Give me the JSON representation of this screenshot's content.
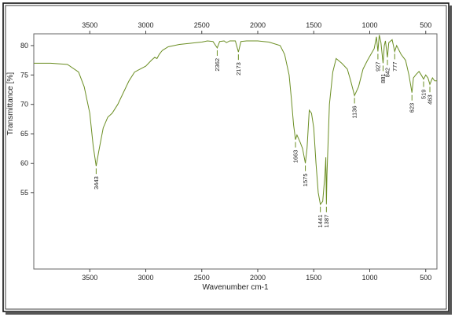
{
  "chart_data": {
    "type": "line",
    "title": "",
    "xlabel": "Wavenumber cm-1",
    "ylabel": "Transmittance [%]",
    "x_reversed": true,
    "xlim": [
      4000,
      400
    ],
    "ylim": [
      42,
      82
    ],
    "x_ticks": [
      3500,
      3000,
      2500,
      2000,
      1500,
      1000,
      500
    ],
    "y_ticks": [
      55,
      60,
      65,
      70,
      75,
      80
    ],
    "grid": false,
    "legend": "none",
    "series_color": "#6b8e23",
    "series": [
      {
        "x": [
          4000,
          3850,
          3700,
          3600,
          3550,
          3500,
          3470,
          3443,
          3420,
          3380,
          3340,
          3300,
          3250,
          3200,
          3150,
          3100,
          3050,
          3000,
          2950,
          2920,
          2900,
          2880,
          2860,
          2850,
          2800,
          2700,
          2600,
          2500,
          2450,
          2400,
          2362,
          2340,
          2300,
          2280,
          2250,
          2200,
          2173,
          2150,
          2100,
          2000,
          1900,
          1800,
          1760,
          1720,
          1700,
          1680,
          1663,
          1650,
          1620,
          1600,
          1575,
          1560,
          1540,
          1520,
          1500,
          1480,
          1460,
          1441,
          1420,
          1400,
          1392,
          1387,
          1382,
          1360,
          1330,
          1300,
          1250,
          1200,
          1170,
          1136,
          1100,
          1060,
          1020,
          990,
          960,
          940,
          927,
          915,
          900,
          881,
          870,
          860,
          842,
          830,
          800,
          777,
          760,
          720,
          680,
          650,
          623,
          610,
          590,
          560,
          540,
          519,
          500,
          480,
          463,
          440,
          420,
          400
        ],
        "y": [
          77.0,
          77.0,
          76.8,
          75.5,
          73.0,
          68.5,
          63.0,
          59.5,
          62.0,
          66.0,
          67.8,
          68.5,
          70.0,
          72.0,
          74.0,
          75.5,
          76.0,
          76.5,
          77.5,
          78.0,
          77.8,
          78.5,
          79.0,
          79.2,
          79.8,
          80.2,
          80.4,
          80.6,
          80.8,
          80.7,
          79.6,
          80.7,
          80.8,
          80.5,
          80.8,
          80.8,
          78.9,
          80.7,
          80.8,
          80.8,
          80.6,
          80.0,
          78.5,
          75.0,
          71.0,
          66.5,
          64.0,
          64.8,
          63.5,
          62.5,
          60.0,
          62.5,
          69.0,
          68.5,
          66.0,
          60.0,
          55.0,
          53.0,
          53.5,
          58.0,
          61.0,
          53.0,
          58.0,
          70.0,
          75.5,
          77.8,
          77.0,
          76.0,
          74.0,
          71.5,
          73.0,
          76.0,
          77.5,
          78.5,
          79.5,
          81.5,
          79.0,
          81.8,
          80.5,
          77.0,
          80.0,
          80.8,
          78.0,
          80.5,
          81.0,
          79.0,
          80.0,
          78.5,
          77.5,
          75.0,
          72.0,
          74.5,
          75.0,
          75.6,
          75.0,
          74.3,
          75.0,
          74.5,
          73.4,
          74.5,
          74.0,
          74.0
        ]
      }
    ],
    "peak_labels": [
      {
        "label": "3443",
        "x": 3443,
        "y": 59.5
      },
      {
        "label": "2362",
        "x": 2362,
        "y": 79.6
      },
      {
        "label": "2173",
        "x": 2173,
        "y": 78.9
      },
      {
        "label": "1663",
        "x": 1663,
        "y": 64.0
      },
      {
        "label": "1575",
        "x": 1575,
        "y": 60.0
      },
      {
        "label": "1441",
        "x": 1441,
        "y": 53.0
      },
      {
        "label": "1387",
        "x": 1387,
        "y": 53.0
      },
      {
        "label": "1136",
        "x": 1136,
        "y": 71.5
      },
      {
        "label": "927",
        "x": 927,
        "y": 79.0
      },
      {
        "label": "881",
        "x": 881,
        "y": 77.0
      },
      {
        "label": "842",
        "x": 842,
        "y": 78.0
      },
      {
        "label": "777",
        "x": 777,
        "y": 79.0
      },
      {
        "label": "623",
        "x": 623,
        "y": 72.0
      },
      {
        "label": "519",
        "x": 519,
        "y": 74.3
      },
      {
        "label": "463",
        "x": 463,
        "y": 73.4
      }
    ]
  }
}
